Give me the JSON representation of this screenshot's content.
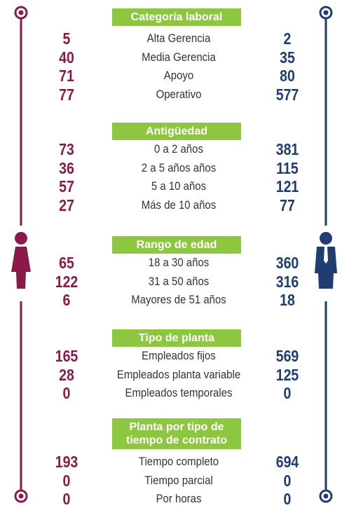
{
  "sections": [
    {
      "title": "Categoría laboral",
      "rows": [
        {
          "women": "5",
          "label": "Alta Gerencia",
          "men": "2"
        },
        {
          "women": "40",
          "label": "Media Gerencia",
          "men": "35"
        },
        {
          "women": "71",
          "label": "Apoyo",
          "men": "80"
        },
        {
          "women": "77",
          "label": "Operativo",
          "men": "577"
        }
      ]
    },
    {
      "title": "Antigüedad",
      "rows": [
        {
          "women": "73",
          "label": "0 a 2 años",
          "men": "381"
        },
        {
          "women": "36",
          "label": "2 a 5 años años",
          "men": "115"
        },
        {
          "women": "57",
          "label": "5 a 10 años",
          "men": "121"
        },
        {
          "women": "27",
          "label": "Más de 10 años",
          "men": "77"
        }
      ]
    },
    {
      "title": "Rango de edad",
      "rows": [
        {
          "women": "65",
          "label": "18 a 30 años",
          "men": "360"
        },
        {
          "women": "122",
          "label": "31 a 50 años",
          "men": "316"
        },
        {
          "women": "6",
          "label": "Mayores de 51 años",
          "men": "18"
        }
      ]
    },
    {
      "title": "Tipo de planta",
      "rows": [
        {
          "women": "165",
          "label": "Empleados fijos",
          "men": "569"
        },
        {
          "women": "28",
          "label": "Empleados planta variable",
          "men": "125"
        },
        {
          "women": "0",
          "label": "Empleados temporales",
          "men": "0"
        }
      ]
    },
    {
      "title": "Planta por tipo de tiempo de contrato",
      "rows": [
        {
          "women": "193",
          "label": "Tiempo completo",
          "men": "694"
        },
        {
          "women": "0",
          "label": "Tiempo parcial",
          "men": "0"
        },
        {
          "women": "0",
          "label": "Por horas",
          "men": "0"
        }
      ]
    }
  ]
}
